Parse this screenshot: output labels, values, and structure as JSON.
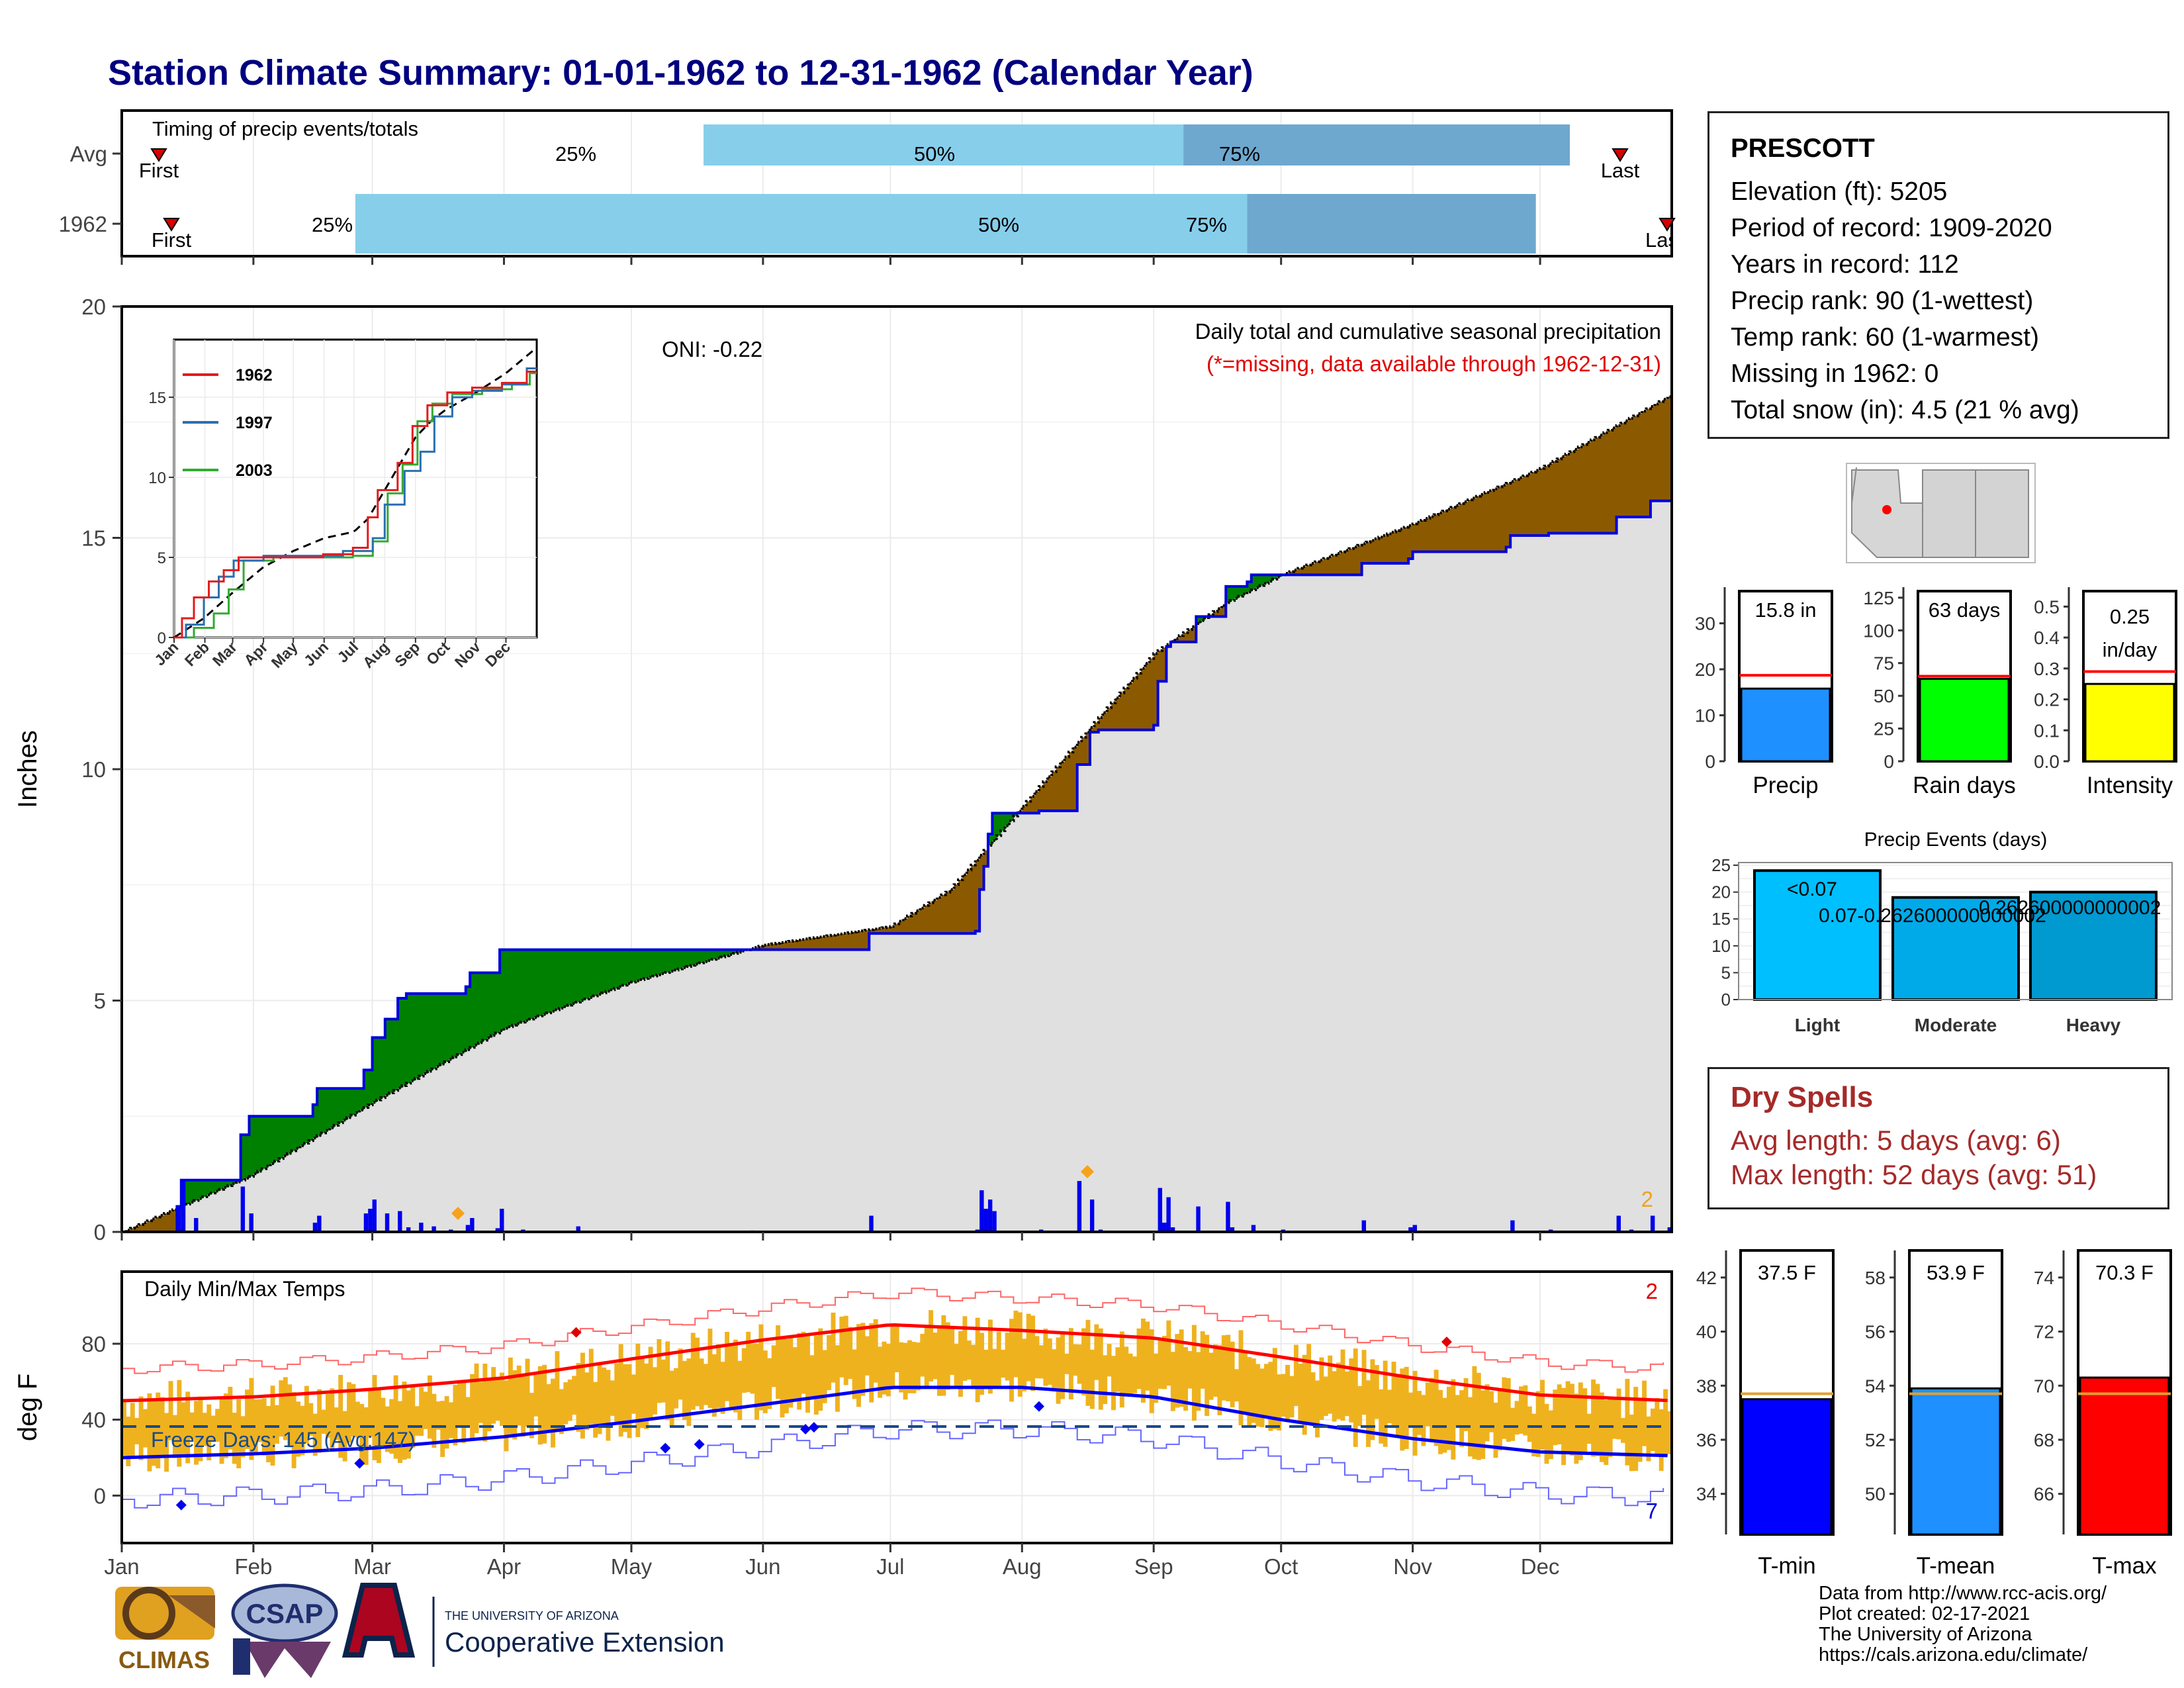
{
  "title": "Station Climate Summary: 01-01-1962 to 12-31-1962 (Calendar Year)",
  "timing": {
    "title": "Timing of precip events/totals",
    "rows": [
      {
        "label": "Avg",
        "first_label": "First",
        "last_label": "Last",
        "p25": "25%",
        "p50": "50%",
        "p75": "75%"
      },
      {
        "label": "1962",
        "first_label": "First",
        "last_label": "Last",
        "p25": "25%",
        "p50": "50%",
        "p75": "75%"
      }
    ]
  },
  "main": {
    "ylabel": "Inches",
    "oni": "ONI: -0.22",
    "note1": "Daily total and cumulative seasonal precipitation",
    "note2": "(*=missing, data available through 1962-12-31)",
    "corner_count": "2",
    "months": [
      "Jan",
      "Feb",
      "Mar",
      "Apr",
      "May",
      "Jun",
      "Jul",
      "Aug",
      "Sep",
      "Oct",
      "Nov",
      "Dec"
    ],
    "yticks": [
      "0",
      "5",
      "10",
      "15",
      "20"
    ]
  },
  "inset": {
    "legend": [
      "1962",
      "1997",
      "2003"
    ],
    "yticks": [
      "0",
      "5",
      "10",
      "15"
    ],
    "months": [
      "Jan",
      "Feb",
      "Mar",
      "Apr",
      "May",
      "Jun",
      "Jul",
      "Aug",
      "Sep",
      "Oct",
      "Nov",
      "Dec"
    ]
  },
  "temps": {
    "title": "Daily Min/Max Temps",
    "ylabel": "deg F",
    "freeze": "Freeze Days: 145 (Avg:147)",
    "count_max": "2",
    "count_min": "7",
    "yticks": [
      "0",
      "40",
      "80"
    ]
  },
  "info": {
    "station": "PRESCOTT",
    "lines": [
      "Elevation (ft): 5205",
      "Period of record: 1909-2020",
      "Years in record: 112",
      "Precip rank: 90 (1-wettest)",
      "Temp rank: 60 (1-warmest)",
      "Missing in 1962: 0",
      "Total snow (in): 4.5 (21 % avg)"
    ]
  },
  "mini_bars": [
    {
      "label": "Precip",
      "value_text": "15.8 in",
      "value": 15.8,
      "avg": 18.7,
      "yticks": [
        "0",
        "10",
        "20",
        "30"
      ],
      "ymax": 37,
      "color": "#1e90ff"
    },
    {
      "label": "Rain days",
      "value_text": "63 days",
      "value": 63,
      "avg": 65,
      "yticks": [
        "0",
        "25",
        "50",
        "75",
        "100",
        "125"
      ],
      "ymax": 130,
      "color": "#00ff00"
    },
    {
      "label": "Intensity",
      "value_text_1": "0.25",
      "value_text_2": "in/day",
      "value": 0.25,
      "avg": 0.29,
      "yticks": [
        "0.0",
        "0.1",
        "0.2",
        "0.3",
        "0.4",
        "0.5"
      ],
      "ymax": 0.55,
      "color": "#ffff00"
    }
  ],
  "events": {
    "title": "Precip Events (days)",
    "categories": [
      "Light",
      "Moderate",
      "Heavy"
    ],
    "values": [
      24,
      19,
      20
    ],
    "labels": [
      "<0.07",
      "0.07-0.262600000000002",
      "0.262600000000002"
    ],
    "yticks": [
      "0",
      "5",
      "10",
      "15",
      "20",
      "25"
    ]
  },
  "dry": {
    "title": "Dry Spells",
    "line1": "Avg length: 5 days (avg: 6)",
    "line2": "Max length: 52 days (avg: 51)"
  },
  "temp_bars": [
    {
      "label": "T-min",
      "value_text": "37.5 F",
      "value": 37.5,
      "avg": 37.7,
      "yticks": [
        "34",
        "36",
        "38",
        "40",
        "42"
      ],
      "ymin": 32.5,
      "ymax": 43,
      "color": "#0000ff"
    },
    {
      "label": "T-mean",
      "value_text": "53.9 F",
      "value": 53.9,
      "avg": 53.7,
      "yticks": [
        "50",
        "52",
        "54",
        "56",
        "58"
      ],
      "ymin": 48.5,
      "ymax": 59,
      "color": "#1e90ff"
    },
    {
      "label": "T-max",
      "value_text": "70.3 F",
      "value": 70.3,
      "avg": 69.7,
      "yticks": [
        "66",
        "68",
        "70",
        "72",
        "74"
      ],
      "ymin": 64.5,
      "ymax": 75,
      "color": "#ff0000"
    }
  ],
  "credits": [
    "Data from http://www.rcc-acis.org/",
    "Plot created: 02-17-2021",
    "The University of Arizona",
    "https://cals.arizona.edu/climate/"
  ],
  "logos": {
    "climas": "CLIMAS",
    "csap": "CSAP",
    "ua_small": "THE UNIVERSITY OF ARIZONA",
    "ua_big": "Cooperative Extension"
  },
  "chart_data": [
    {
      "type": "area",
      "title": "Daily total and cumulative seasonal precipitation",
      "ylabel": "Inches",
      "ylim": [
        0,
        20
      ],
      "x": [
        "Jan",
        "Feb",
        "Mar",
        "Apr",
        "May",
        "Jun",
        "Jul",
        "Aug",
        "Sep",
        "Oct",
        "Nov",
        "Dec",
        "Dec31"
      ],
      "series": [
        {
          "name": "Avg",
          "values": [
            0,
            1.2,
            2.8,
            4.4,
            5.4,
            6.2,
            6.6,
            9.2,
            12.5,
            14.2,
            15.3,
            16.5,
            18.1
          ]
        },
        {
          "name": "1962",
          "values": [
            0,
            2.5,
            4.0,
            6.1,
            6.1,
            6.5,
            6.5,
            9.1,
            11.0,
            14.2,
            14.2,
            15.0,
            15.8
          ]
        }
      ]
    },
    {
      "type": "line",
      "title": "Daily Min/Max Temps",
      "ylabel": "deg F",
      "x": [
        "Jan",
        "Feb",
        "Mar",
        "Apr",
        "May",
        "Jun",
        "Jul",
        "Aug",
        "Sep",
        "Oct",
        "Nov",
        "Dec",
        "Dec31"
      ],
      "series": [
        {
          "name": "Avg max",
          "values": [
            50,
            52,
            56,
            62,
            72,
            82,
            90,
            87,
            83,
            73,
            62,
            53,
            50
          ]
        },
        {
          "name": "Avg min",
          "values": [
            20,
            22,
            25,
            31,
            39,
            48,
            57,
            57,
            52,
            40,
            30,
            23,
            21
          ]
        }
      ]
    }
  ]
}
